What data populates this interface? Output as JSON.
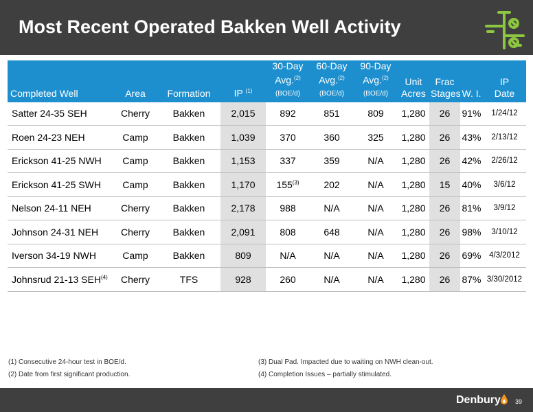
{
  "title": "Most Recent Operated Bakken Well Activity",
  "colors": {
    "header_bg": "#3f3f3f",
    "table_header_bg": "#1e8fce",
    "shade": "#e0e0e0",
    "logo_green": "#8dc63f",
    "drop_orange": "#f7941d"
  },
  "table": {
    "headers": {
      "well": "Completed Well",
      "area": "Area",
      "formation": "Formation",
      "ip": "IP",
      "ip_note": "(1)",
      "avg30_l1": "30-Day",
      "avg30_l2": "Avg.",
      "avg30_note": "(2)",
      "avg30_unit": "(BOE/d)",
      "avg60_l1": "60-Day",
      "avg60_l2": "Avg.",
      "avg60_note": "(2)",
      "avg60_unit": "(BOE/d)",
      "avg90_l1": "90-Day",
      "avg90_l2": "Avg.",
      "avg90_note": "(2)",
      "avg90_unit": "(BOE/d)",
      "acres_l1": "Unit",
      "acres_l2": "Acres",
      "frac_l1": "Frac",
      "frac_l2": "Stages",
      "wi": "W. I.",
      "date_l1": "IP",
      "date_l2": "Date"
    },
    "rows": [
      {
        "well": "Satter 24-35 SEH",
        "well_note": "",
        "area": "Cherry",
        "formation": "Bakken",
        "ip": "2,015",
        "d30": "892",
        "d30_note": "",
        "d60": "851",
        "d90": "809",
        "acres": "1,280",
        "frac": "26",
        "wi": "91%",
        "date": "1/24/12"
      },
      {
        "well": "Roen 24-23 NEH",
        "well_note": "",
        "area": "Camp",
        "formation": "Bakken",
        "ip": "1,039",
        "d30": "370",
        "d30_note": "",
        "d60": "360",
        "d90": "325",
        "acres": "1,280",
        "frac": "26",
        "wi": "43%",
        "date": "2/13/12"
      },
      {
        "well": "Erickson 41-25 NWH",
        "well_note": "",
        "area": "Camp",
        "formation": "Bakken",
        "ip": "1,153",
        "d30": "337",
        "d30_note": "",
        "d60": "359",
        "d90": "N/A",
        "acres": "1,280",
        "frac": "26",
        "wi": "42%",
        "date": "2/26/12"
      },
      {
        "well": "Erickson 41-25 SWH",
        "well_note": "",
        "area": "Camp",
        "formation": "Bakken",
        "ip": "1,170",
        "d30": "155",
        "d30_note": "(3)",
        "d60": "202",
        "d90": "N/A",
        "acres": "1,280",
        "frac": "15",
        "wi": "40%",
        "date": "3/6/12"
      },
      {
        "well": "Nelson 24-11 NEH",
        "well_note": "",
        "area": "Cherry",
        "formation": "Bakken",
        "ip": "2,178",
        "d30": "988",
        "d30_note": "",
        "d60": "N/A",
        "d90": "N/A",
        "acres": "1,280",
        "frac": "26",
        "wi": "81%",
        "date": "3/9/12"
      },
      {
        "well": "Johnson 24-31 NEH",
        "well_note": "",
        "area": "Cherry",
        "formation": "Bakken",
        "ip": "2,091",
        "d30": "808",
        "d30_note": "",
        "d60": "648",
        "d90": "N/A",
        "acres": "1,280",
        "frac": "26",
        "wi": "98%",
        "date": "3/10/12"
      },
      {
        "well": "Iverson 34-19 NWH",
        "well_note": "",
        "area": "Camp",
        "formation": "Bakken",
        "ip": "809",
        "d30": "N/A",
        "d30_note": "",
        "d60": "N/A",
        "d90": "N/A",
        "acres": "1,280",
        "frac": "26",
        "wi": "69%",
        "date": "4/3/2012"
      },
      {
        "well": "Johnsrud 21-13 SEH",
        "well_note": "(4)",
        "area": "Cherry",
        "formation": "TFS",
        "ip": "928",
        "d30": "260",
        "d30_note": "",
        "d60": "N/A",
        "d90": "N/A",
        "acres": "1,280",
        "frac": "26",
        "wi": "87%",
        "date": "3/30/2012"
      }
    ]
  },
  "footnotes": {
    "f1": "(1) Consecutive 24-hour test in BOE/d.",
    "f2": "(2) Date from first significant production.",
    "f3": "(3) Dual Pad. Impacted due to waiting on NWH clean-out.",
    "f4": "(4) Completion Issues – partially stimulated."
  },
  "footer": {
    "brand": "Denbury",
    "page": "39"
  },
  "icons": {
    "logo": "wellhead-valve-icon",
    "drop": "oil-drop-icon"
  }
}
